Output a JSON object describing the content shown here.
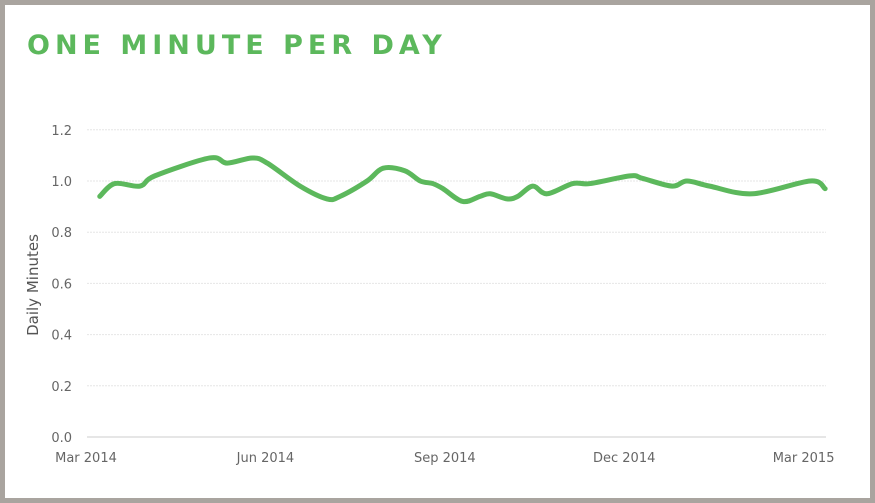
{
  "title": "ONE MINUTE PER DAY",
  "colors": {
    "line": "#5cb85c",
    "title": "#5cb85c",
    "grid": "#e6e6e6"
  },
  "chart_data": {
    "type": "line",
    "title": "ONE MINUTE PER DAY",
    "xlabel": "",
    "ylabel": "Daily Minutes",
    "ylim": [
      0,
      1.2
    ],
    "yticks": [
      0.0,
      0.2,
      0.4,
      0.6,
      0.8,
      1.0,
      1.2
    ],
    "ytick_labels": [
      "0.0",
      "0.2",
      "0.4",
      "0.6",
      "0.8",
      "1.0",
      "1.2"
    ],
    "x_units": "months since Mar 2014",
    "xlim": [
      0,
      12.4
    ],
    "xticks": [
      0,
      3,
      6,
      9,
      12
    ],
    "xtick_labels": [
      "Mar 2014",
      "Jun 2014",
      "Sep 2014",
      "Dec 2014",
      "Mar 2015"
    ],
    "grid": true,
    "series": [
      {
        "name": "Daily Minutes",
        "x": [
          0.23,
          0.48,
          0.9,
          1.15,
          2.07,
          2.36,
          2.78,
          3.03,
          3.58,
          4.03,
          4.25,
          4.7,
          4.97,
          5.33,
          5.59,
          5.8,
          5.97,
          6.3,
          6.59,
          6.76,
          7.04,
          7.22,
          7.47,
          7.71,
          8.14,
          8.43,
          9.1,
          9.31,
          9.8,
          10.05,
          10.43,
          11.15,
          12.11,
          12.36
        ],
        "y": [
          0.94,
          0.99,
          0.98,
          1.02,
          1.09,
          1.07,
          1.09,
          1.07,
          0.98,
          0.93,
          0.94,
          1.0,
          1.05,
          1.04,
          1.0,
          0.99,
          0.97,
          0.92,
          0.94,
          0.95,
          0.93,
          0.94,
          0.98,
          0.95,
          0.99,
          0.99,
          1.02,
          1.01,
          0.98,
          1.0,
          0.98,
          0.95,
          1.0,
          0.97
        ]
      }
    ]
  }
}
